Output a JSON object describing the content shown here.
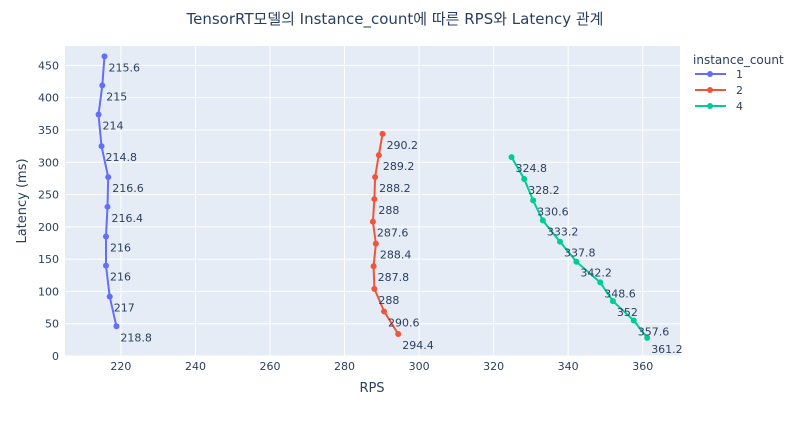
{
  "chart_data": {
    "type": "line",
    "title": "TensorRT모델의 Instance_count에 따른 RPS와 Latency 관계",
    "xlabel": "RPS",
    "ylabel": "Latency (ms)",
    "xlim": [
      205,
      370
    ],
    "ylim": [
      0,
      480
    ],
    "xticks": [
      220,
      240,
      260,
      280,
      300,
      320,
      340,
      360
    ],
    "yticks": [
      0,
      50,
      100,
      150,
      200,
      250,
      300,
      350,
      400,
      450
    ],
    "grid": true,
    "legend": {
      "title": "instance_count",
      "placement": "top-right"
    },
    "series": [
      {
        "name": "1",
        "color": "#636efa",
        "x": [
          218.8,
          217,
          216,
          216,
          216.4,
          216.6,
          214.8,
          214,
          215,
          215.6
        ],
        "y": [
          46,
          92,
          140,
          185,
          231,
          277,
          325,
          374,
          419,
          464
        ],
        "labels": [
          "218.8",
          "217",
          "216",
          "216",
          "216.4",
          "216.6",
          "214.8",
          "214",
          "215",
          "215.6"
        ]
      },
      {
        "name": "2",
        "color": "#ef553b",
        "x": [
          294.4,
          290.6,
          288,
          287.8,
          288.4,
          287.6,
          288,
          288.2,
          289.2,
          290.2
        ],
        "y": [
          34,
          69,
          104,
          139,
          174,
          208,
          243,
          277,
          311,
          344
        ],
        "labels": [
          "294.4",
          "290.6",
          "288",
          "287.8",
          "288.4",
          "287.6",
          "288",
          "288.2",
          "289.2",
          "290.2"
        ]
      },
      {
        "name": "4",
        "color": "#00cc96",
        "x": [
          361.2,
          357.6,
          352,
          348.6,
          342.2,
          337.8,
          333.2,
          330.6,
          328.2,
          324.8
        ],
        "y": [
          28,
          55,
          85,
          114,
          146,
          177,
          210,
          241,
          274,
          308
        ],
        "labels": [
          "361.2",
          "357.6",
          "352",
          "348.6",
          "342.2",
          "337.8",
          "333.2",
          "330.6",
          "328.2",
          "324.8"
        ]
      }
    ]
  }
}
